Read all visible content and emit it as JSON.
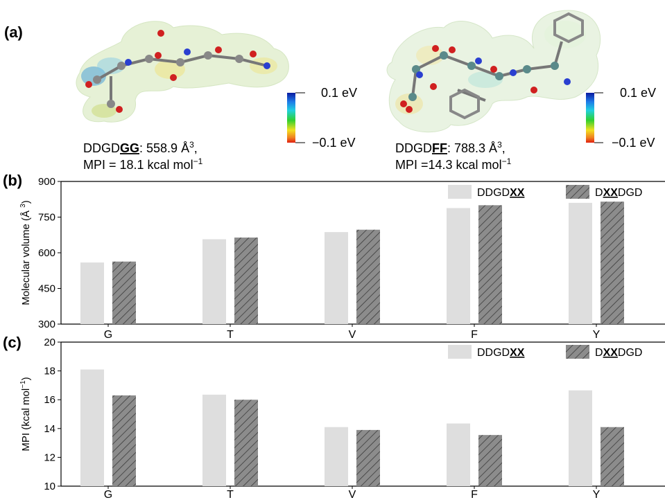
{
  "panel_labels": {
    "a": "(a)",
    "b": "(b)",
    "c": "(c)"
  },
  "molecules": [
    {
      "name_prefix": "DDGD",
      "name_bold": "GG",
      "volume_text": ": 558.9 Å",
      "volume_sup": "3",
      "volume_suffix": ",",
      "mpi_text": "MPI = 18.1 kcal mol",
      "mpi_sup": "−1",
      "scale_max": "0.1 eV",
      "scale_min": "−0.1 eV"
    },
    {
      "name_prefix": "DDGD",
      "name_bold": "FF",
      "volume_text": ": 788.3 Å",
      "volume_sup": "3",
      "volume_suffix": ",",
      "mpi_text": "MPI =14.3 kcal mol",
      "mpi_sup": "−1",
      "scale_max": "0.1 eV",
      "scale_min": "−0.1 eV"
    }
  ],
  "legend": {
    "series1_prefix": "DDGD",
    "series1_bold": "XX",
    "series1_suffix": "",
    "series2_prefix": "D",
    "series2_bold": "XX",
    "series2_suffix": "DGD"
  },
  "colors": {
    "series1": "#dedede",
    "series2": "#8c8c8c",
    "hatch": "#3a3a3a"
  },
  "chart_data": [
    {
      "type": "bar",
      "panel": "b",
      "ylabel": "Molecular volume (Å 3)",
      "ylabel_main": "Molecular volume (Å ",
      "ylabel_sup": "3",
      "ylabel_end": ")",
      "categories": [
        "G",
        "T",
        "V",
        "F",
        "Y"
      ],
      "ylim": [
        300,
        900
      ],
      "yticks": [
        "300",
        "450",
        "600",
        "750",
        "900"
      ],
      "series": [
        {
          "name": "DDGDXX",
          "values": [
            559,
            657,
            687,
            788,
            810
          ]
        },
        {
          "name": "DXXDGD",
          "values": [
            563,
            664,
            697,
            800,
            815
          ]
        }
      ]
    },
    {
      "type": "bar",
      "panel": "c",
      "ylabel": "MPI (kcal mol−1)",
      "ylabel_main": "MPI (kcal mol",
      "ylabel_sup": "−1",
      "ylabel_end": ")",
      "categories": [
        "G",
        "T",
        "V",
        "F",
        "Y"
      ],
      "ylim": [
        10,
        20
      ],
      "yticks": [
        "10",
        "12",
        "14",
        "16",
        "18",
        "20"
      ],
      "series": [
        {
          "name": "DDGDXX",
          "values": [
            18.1,
            16.35,
            14.1,
            14.35,
            16.65
          ]
        },
        {
          "name": "DXXDGD",
          "values": [
            16.3,
            16.0,
            13.9,
            13.55,
            14.1
          ]
        }
      ]
    }
  ]
}
